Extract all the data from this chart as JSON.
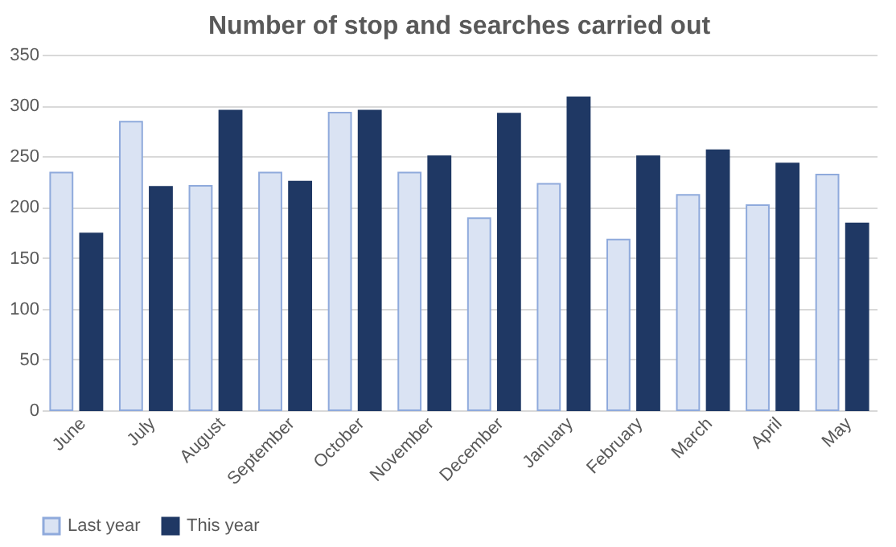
{
  "chart_data": {
    "type": "bar",
    "title": "Number of stop and searches carried out",
    "categories": [
      "June",
      "July",
      "August",
      "September",
      "October",
      "November",
      "December",
      "January",
      "February",
      "March",
      "April",
      "May"
    ],
    "series": [
      {
        "name": "Last year",
        "color": "#dae3f3",
        "values": [
          234,
          284,
          221,
          234,
          293,
          234,
          189,
          223,
          168,
          212,
          202,
          232
        ]
      },
      {
        "name": "This year",
        "color": "#1f3864",
        "values": [
          174,
          220,
          295,
          225,
          295,
          250,
          292,
          308,
          250,
          256,
          243,
          184
        ]
      }
    ],
    "ylim": [
      0,
      350
    ],
    "yticks": [
      0,
      50,
      100,
      150,
      200,
      250,
      300,
      350
    ],
    "grid": "y",
    "legend": "bottom"
  }
}
